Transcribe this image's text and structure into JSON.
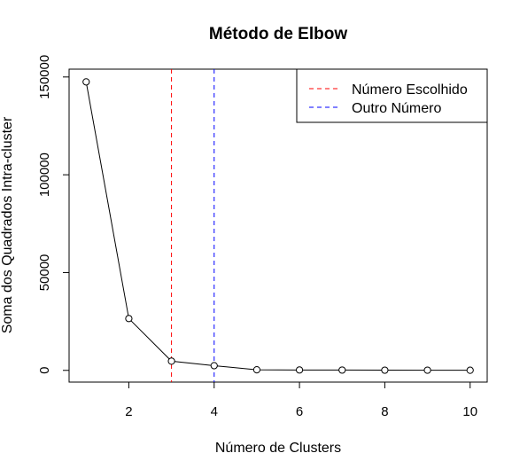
{
  "chart_data": {
    "type": "line",
    "title": "Método de Elbow",
    "xlabel": "Número de Clusters",
    "ylabel": "Soma dos Quadrados Intra-cluster",
    "xlim": [
      0.6,
      10.4
    ],
    "ylim": [
      -6000,
      154000
    ],
    "x_ticks": [
      2,
      4,
      6,
      8,
      10
    ],
    "y_ticks": [
      0,
      50000,
      100000,
      150000
    ],
    "x": [
      1,
      2,
      3,
      4,
      5,
      6,
      7,
      8,
      9,
      10
    ],
    "series": [
      {
        "values": [
          147500,
          26500,
          4700,
          2400,
          300,
          200,
          150,
          100,
          80,
          60
        ],
        "color": "#000000",
        "marker": "open-circle"
      }
    ],
    "vlines": [
      {
        "x": 3,
        "color": "#ff0000",
        "style": "dashed",
        "label": "Número Escolhido"
      },
      {
        "x": 4,
        "color": "#0000ff",
        "style": "dashed",
        "label": "Outro Número"
      }
    ],
    "legend": {
      "position": "top-right",
      "entries": [
        "Número Escolhido",
        "Outro Número"
      ]
    },
    "grid": false
  }
}
